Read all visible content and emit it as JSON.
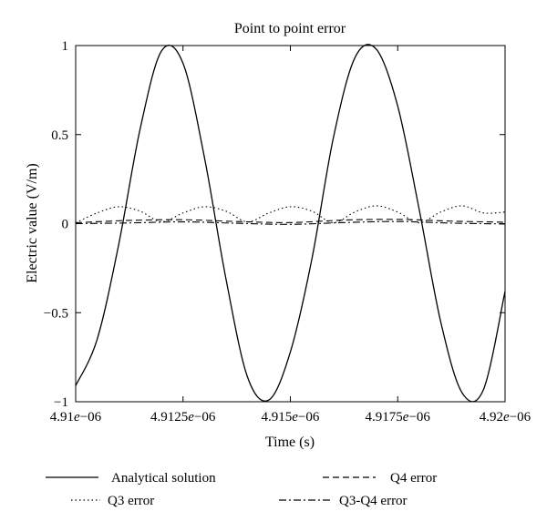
{
  "chart_data": {
    "type": "line",
    "title": "Point to point error",
    "xlabel": "Time (s)",
    "ylabel": "Electric value (V/m)",
    "xlim": [
      4.91e-06,
      4.92e-06
    ],
    "ylim": [
      -1,
      1
    ],
    "x_ticks": [
      4.91e-06,
      4.9125e-06,
      4.915e-06,
      4.9175e-06,
      4.92e-06
    ],
    "x_tick_labels": [
      {
        "mantissa": "4.91",
        "e": "e",
        "exp": "−06"
      },
      {
        "mantissa": "4.9125",
        "e": "e",
        "exp": "−06"
      },
      {
        "mantissa": "4.915",
        "e": "e",
        "exp": "−06"
      },
      {
        "mantissa": "4.9175",
        "e": "e",
        "exp": "−06"
      },
      {
        "mantissa": "4.92",
        "e": "e",
        "exp": "−06"
      }
    ],
    "y_ticks": [
      1,
      0.5,
      0,
      -0.5,
      -1
    ],
    "y_tick_labels": [
      "1",
      "0.5",
      "0",
      "−0.5",
      "−1"
    ],
    "grid": false,
    "legend_position": "bottom",
    "series": [
      {
        "name": "Analytical solution",
        "style": "solid",
        "x": [
          4.91e-06,
          4.9105e-06,
          4.911e-06,
          4.9115e-06,
          4.912e-06,
          4.9125e-06,
          4.913e-06,
          4.9135e-06,
          4.914e-06,
          4.9145e-06,
          4.915e-06,
          4.9155e-06,
          4.916e-06,
          4.9165e-06,
          4.917e-06,
          4.9175e-06,
          4.918e-06,
          4.9185e-06,
          4.919e-06,
          4.9195e-06,
          4.92e-06
        ],
        "values": [
          -0.91,
          -0.65,
          -0.12,
          0.53,
          0.97,
          0.9,
          0.37,
          -0.31,
          -0.86,
          -0.99,
          -0.72,
          -0.2,
          0.48,
          0.93,
          0.98,
          0.66,
          0.08,
          -0.55,
          -0.95,
          -0.93,
          -0.38
        ]
      },
      {
        "name": "Q3 error",
        "style": "dotted",
        "x": [
          4.91e-06,
          4.9105e-06,
          4.911e-06,
          4.9115e-06,
          4.912e-06,
          4.9125e-06,
          4.913e-06,
          4.9135e-06,
          4.914e-06,
          4.9145e-06,
          4.915e-06,
          4.9155e-06,
          4.916e-06,
          4.9165e-06,
          4.917e-06,
          4.9175e-06,
          4.918e-06,
          4.9185e-06,
          4.919e-06,
          4.9195e-06,
          4.92e-06
        ],
        "values": [
          0.005,
          0.06,
          0.095,
          0.07,
          0.01,
          0.06,
          0.095,
          0.07,
          0.01,
          0.06,
          0.095,
          0.07,
          0.005,
          0.065,
          0.1,
          0.065,
          0.005,
          0.065,
          0.1,
          0.06,
          0.065
        ]
      },
      {
        "name": "Q4 error",
        "style": "dashed",
        "x": [
          4.91e-06,
          4.91125e-06,
          4.9125e-06,
          4.91375e-06,
          4.915e-06,
          4.91625e-06,
          4.9175e-06,
          4.91875e-06,
          4.92e-06
        ],
        "values": [
          0.005,
          0.018,
          0.022,
          0.012,
          0.006,
          0.02,
          0.024,
          0.014,
          0.008
        ]
      },
      {
        "name": "Q3-Q4 error",
        "style": "dashdot",
        "x": [
          4.91e-06,
          4.91125e-06,
          4.9125e-06,
          4.91375e-06,
          4.915e-06,
          4.91625e-06,
          4.9175e-06,
          4.91875e-06,
          4.92e-06
        ],
        "values": [
          0.0,
          0.004,
          0.01,
          0.002,
          -0.004,
          0.006,
          0.012,
          0.003,
          -0.002
        ]
      }
    ]
  }
}
